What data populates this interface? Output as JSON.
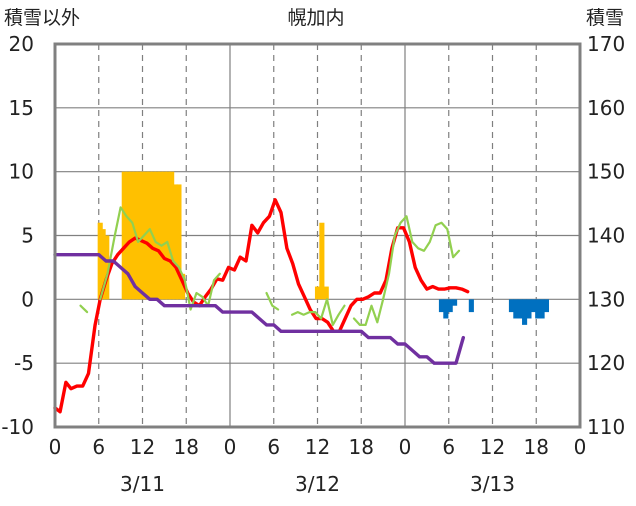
{
  "chart_data": {
    "type": "line",
    "title": "幌加内",
    "left_axis_label": "積雪以外",
    "right_axis_label": "積雪",
    "left_ylim": [
      -10,
      20
    ],
    "right_ylim": [
      110,
      170
    ],
    "left_ticks": [
      "-10",
      "-5",
      "0",
      "5",
      "10",
      "15",
      "20"
    ],
    "right_ticks": [
      "110",
      "120",
      "130",
      "140",
      "150",
      "160",
      "170"
    ],
    "x_range_hours": [
      0,
      72
    ],
    "x_tick_labels": [
      "0",
      "6",
      "12",
      "18",
      "0",
      "6",
      "12",
      "18",
      "0",
      "6",
      "12",
      "18",
      "0"
    ],
    "date_labels": [
      "3/11",
      "3/12",
      "3/13"
    ],
    "grid": "dashed vertical lines every 6 hours; horizontal lines at each 5 units",
    "colors": {
      "temperature": "#ff0000",
      "dew_point": "#92d050",
      "snow_depth": "#7030a0",
      "snowfall_positive": "#ffc000",
      "snowfall_negative": "#0070c0",
      "frame": "#808080"
    },
    "bars": [
      {
        "x": 6.2,
        "value": 6
      },
      {
        "x": 6.6,
        "value": 5.5
      },
      {
        "x": 7.1,
        "value": 5
      },
      {
        "x": 9.5,
        "value": 10
      },
      {
        "x": 10,
        "value": 10
      },
      {
        "x": 10.5,
        "value": 10
      },
      {
        "x": 11,
        "value": 10
      },
      {
        "x": 11.5,
        "value": 10
      },
      {
        "x": 12,
        "value": 10
      },
      {
        "x": 12.5,
        "value": 10
      },
      {
        "x": 13,
        "value": 10
      },
      {
        "x": 13.5,
        "value": 10
      },
      {
        "x": 14,
        "value": 10
      },
      {
        "x": 14.5,
        "value": 10
      },
      {
        "x": 15,
        "value": 10
      },
      {
        "x": 15.5,
        "value": 10
      },
      {
        "x": 16,
        "value": 10
      },
      {
        "x": 16.5,
        "value": 9
      },
      {
        "x": 17,
        "value": 9
      },
      {
        "x": 17.5,
        "value": 2
      },
      {
        "x": 36,
        "value": 1
      },
      {
        "x": 36.6,
        "value": 6
      },
      {
        "x": 37.2,
        "value": 1
      },
      {
        "x": 53,
        "value": -1
      },
      {
        "x": 53.6,
        "value": -1.5
      },
      {
        "x": 54.2,
        "value": -1
      },
      {
        "x": 54.8,
        "value": -0.5
      },
      {
        "x": 57.1,
        "value": -1
      },
      {
        "x": 62.6,
        "value": -1
      },
      {
        "x": 63.2,
        "value": -1.5
      },
      {
        "x": 63.8,
        "value": -1.5
      },
      {
        "x": 64.4,
        "value": -2
      },
      {
        "x": 65,
        "value": -1.5
      },
      {
        "x": 65.6,
        "value": -1
      },
      {
        "x": 66.2,
        "value": -1.5
      },
      {
        "x": 66.8,
        "value": -1.5
      },
      {
        "x": 67.4,
        "value": -1
      }
    ],
    "series": [
      {
        "key": "temperature",
        "axis": "left",
        "points": [
          [
            0,
            -8.5
          ],
          [
            0.7,
            -8.8
          ],
          [
            1.5,
            -6.5
          ],
          [
            2.2,
            -7
          ],
          [
            3,
            -6.8
          ],
          [
            3.8,
            -6.8
          ],
          [
            4.6,
            -5.8
          ],
          [
            5.5,
            -2
          ],
          [
            6.2,
            0
          ],
          [
            7,
            1.5
          ],
          [
            7.8,
            2.8
          ],
          [
            8.6,
            3.5
          ],
          [
            9.4,
            4
          ],
          [
            10.2,
            4.5
          ],
          [
            11,
            4.8
          ],
          [
            11.8,
            4.6
          ],
          [
            12.6,
            4.4
          ],
          [
            13.4,
            4
          ],
          [
            14.2,
            3.8
          ],
          [
            15,
            3.2
          ],
          [
            15.8,
            3
          ],
          [
            16.6,
            2.5
          ],
          [
            17.4,
            1.5
          ],
          [
            18.2,
            0.5
          ],
          [
            19,
            -0.2
          ],
          [
            19.8,
            -0.5
          ],
          [
            20.6,
            0.2
          ],
          [
            21.4,
            0.8
          ],
          [
            22.2,
            1.6
          ],
          [
            23,
            1.5
          ],
          [
            23.8,
            2.5
          ],
          [
            24.6,
            2.3
          ],
          [
            25.4,
            3.3
          ],
          [
            26.2,
            3
          ],
          [
            27,
            5.8
          ],
          [
            27.8,
            5.2
          ],
          [
            28.6,
            6
          ],
          [
            29.4,
            6.5
          ],
          [
            30.2,
            7.8
          ],
          [
            31,
            6.8
          ],
          [
            31.8,
            4
          ],
          [
            32.6,
            2.8
          ],
          [
            33.4,
            1.2
          ],
          [
            34.2,
            0.2
          ],
          [
            35,
            -0.8
          ],
          [
            35.8,
            -1.5
          ],
          [
            36.6,
            -1.5
          ],
          [
            37.4,
            -1.8
          ],
          [
            38.2,
            -2.5
          ],
          [
            39,
            -2.5
          ],
          [
            39.8,
            -1.5
          ],
          [
            40.6,
            -0.5
          ],
          [
            41.4,
            0
          ],
          [
            42.2,
            0
          ],
          [
            43,
            0.2
          ],
          [
            43.8,
            0.5
          ],
          [
            44.6,
            0.5
          ],
          [
            45.4,
            1.5
          ],
          [
            46.2,
            4
          ],
          [
            47,
            5.6
          ],
          [
            47.8,
            5.6
          ],
          [
            48.6,
            4.5
          ],
          [
            49.4,
            2.5
          ],
          [
            50.2,
            1.5
          ],
          [
            51,
            0.8
          ],
          [
            51.8,
            1
          ],
          [
            52.6,
            0.8
          ],
          [
            53.4,
            0.8
          ],
          [
            54.2,
            0.9
          ],
          [
            55,
            0.9
          ],
          [
            55.8,
            0.8
          ],
          [
            56.6,
            0.6
          ]
        ]
      },
      {
        "key": "dew_point",
        "axis": "left",
        "segments": [
          [
            [
              3.5,
              -0.5
            ],
            [
              4.4,
              -1
            ]
          ],
          [
            [
              6.2,
              0
            ],
            [
              7.2,
              2
            ],
            [
              8.2,
              5
            ],
            [
              9,
              7.2
            ],
            [
              9.8,
              6.5
            ],
            [
              10.6,
              6
            ],
            [
              11.4,
              4.5
            ],
            [
              12.2,
              5
            ],
            [
              13,
              5.5
            ],
            [
              13.8,
              4.5
            ],
            [
              14.6,
              4.2
            ],
            [
              15.4,
              4.5
            ],
            [
              16.2,
              3
            ],
            [
              17,
              2.5
            ],
            [
              17.8,
              1.5
            ],
            [
              18.6,
              -0.8
            ],
            [
              19.4,
              0.5
            ],
            [
              20.2,
              0.2
            ],
            [
              21,
              -0.5
            ],
            [
              21.8,
              1.5
            ],
            [
              22.6,
              2
            ]
          ],
          [
            [
              29,
              0.5
            ],
            [
              29.8,
              -0.5
            ],
            [
              30.6,
              -0.8
            ]
          ],
          [
            [
              32.5,
              -1.2
            ],
            [
              33.3,
              -1
            ],
            [
              34.1,
              -1.2
            ],
            [
              34.9,
              -1
            ],
            [
              35.7,
              -1
            ],
            [
              36.5,
              -1.5
            ],
            [
              37.3,
              0
            ],
            [
              38.1,
              -2
            ],
            [
              38.9,
              -1.2
            ],
            [
              39.7,
              -0.5
            ]
          ],
          [
            [
              41,
              -1.5
            ],
            [
              41.8,
              -2
            ],
            [
              42.6,
              -2
            ],
            [
              43.4,
              -0.5
            ],
            [
              44.2,
              -1.8
            ],
            [
              45,
              0
            ],
            [
              45.8,
              2
            ],
            [
              46.6,
              5
            ],
            [
              47.4,
              6
            ],
            [
              48.2,
              6.5
            ],
            [
              49,
              4.5
            ],
            [
              49.8,
              4
            ],
            [
              50.6,
              3.8
            ],
            [
              51.4,
              4.5
            ],
            [
              52.2,
              5.8
            ],
            [
              53,
              6
            ],
            [
              53.8,
              5.5
            ],
            [
              54.6,
              3.3
            ],
            [
              55.4,
              3.8
            ]
          ]
        ]
      },
      {
        "key": "snow_depth",
        "axis": "right",
        "points": [
          [
            0,
            137
          ],
          [
            6,
            137
          ],
          [
            7,
            136
          ],
          [
            8,
            136
          ],
          [
            9,
            135
          ],
          [
            10,
            134
          ],
          [
            11,
            132
          ],
          [
            12,
            131
          ],
          [
            13,
            130
          ],
          [
            14,
            130
          ],
          [
            15,
            129
          ],
          [
            16,
            129
          ],
          [
            17,
            129
          ],
          [
            18,
            129
          ],
          [
            19,
            129
          ],
          [
            20,
            129
          ],
          [
            21,
            129
          ],
          [
            22,
            129
          ],
          [
            23,
            128
          ],
          [
            24,
            128
          ],
          [
            25,
            128
          ],
          [
            26,
            128
          ],
          [
            27,
            128
          ],
          [
            28,
            127
          ],
          [
            29,
            126
          ],
          [
            30,
            126
          ],
          [
            31,
            125
          ],
          [
            32,
            125
          ],
          [
            33,
            125
          ],
          [
            34,
            125
          ],
          [
            35,
            125
          ],
          [
            36,
            125
          ],
          [
            37,
            125
          ],
          [
            38,
            125
          ],
          [
            39,
            125
          ],
          [
            40,
            125
          ],
          [
            41,
            125
          ],
          [
            42,
            125
          ],
          [
            43,
            124
          ],
          [
            44,
            124
          ],
          [
            45,
            124
          ],
          [
            46,
            124
          ],
          [
            47,
            123
          ],
          [
            48,
            123
          ],
          [
            49,
            122
          ],
          [
            50,
            121
          ],
          [
            51,
            121
          ],
          [
            52,
            120
          ],
          [
            53,
            120
          ],
          [
            54,
            120
          ],
          [
            55,
            120
          ],
          [
            56,
            124
          ]
        ]
      }
    ]
  }
}
